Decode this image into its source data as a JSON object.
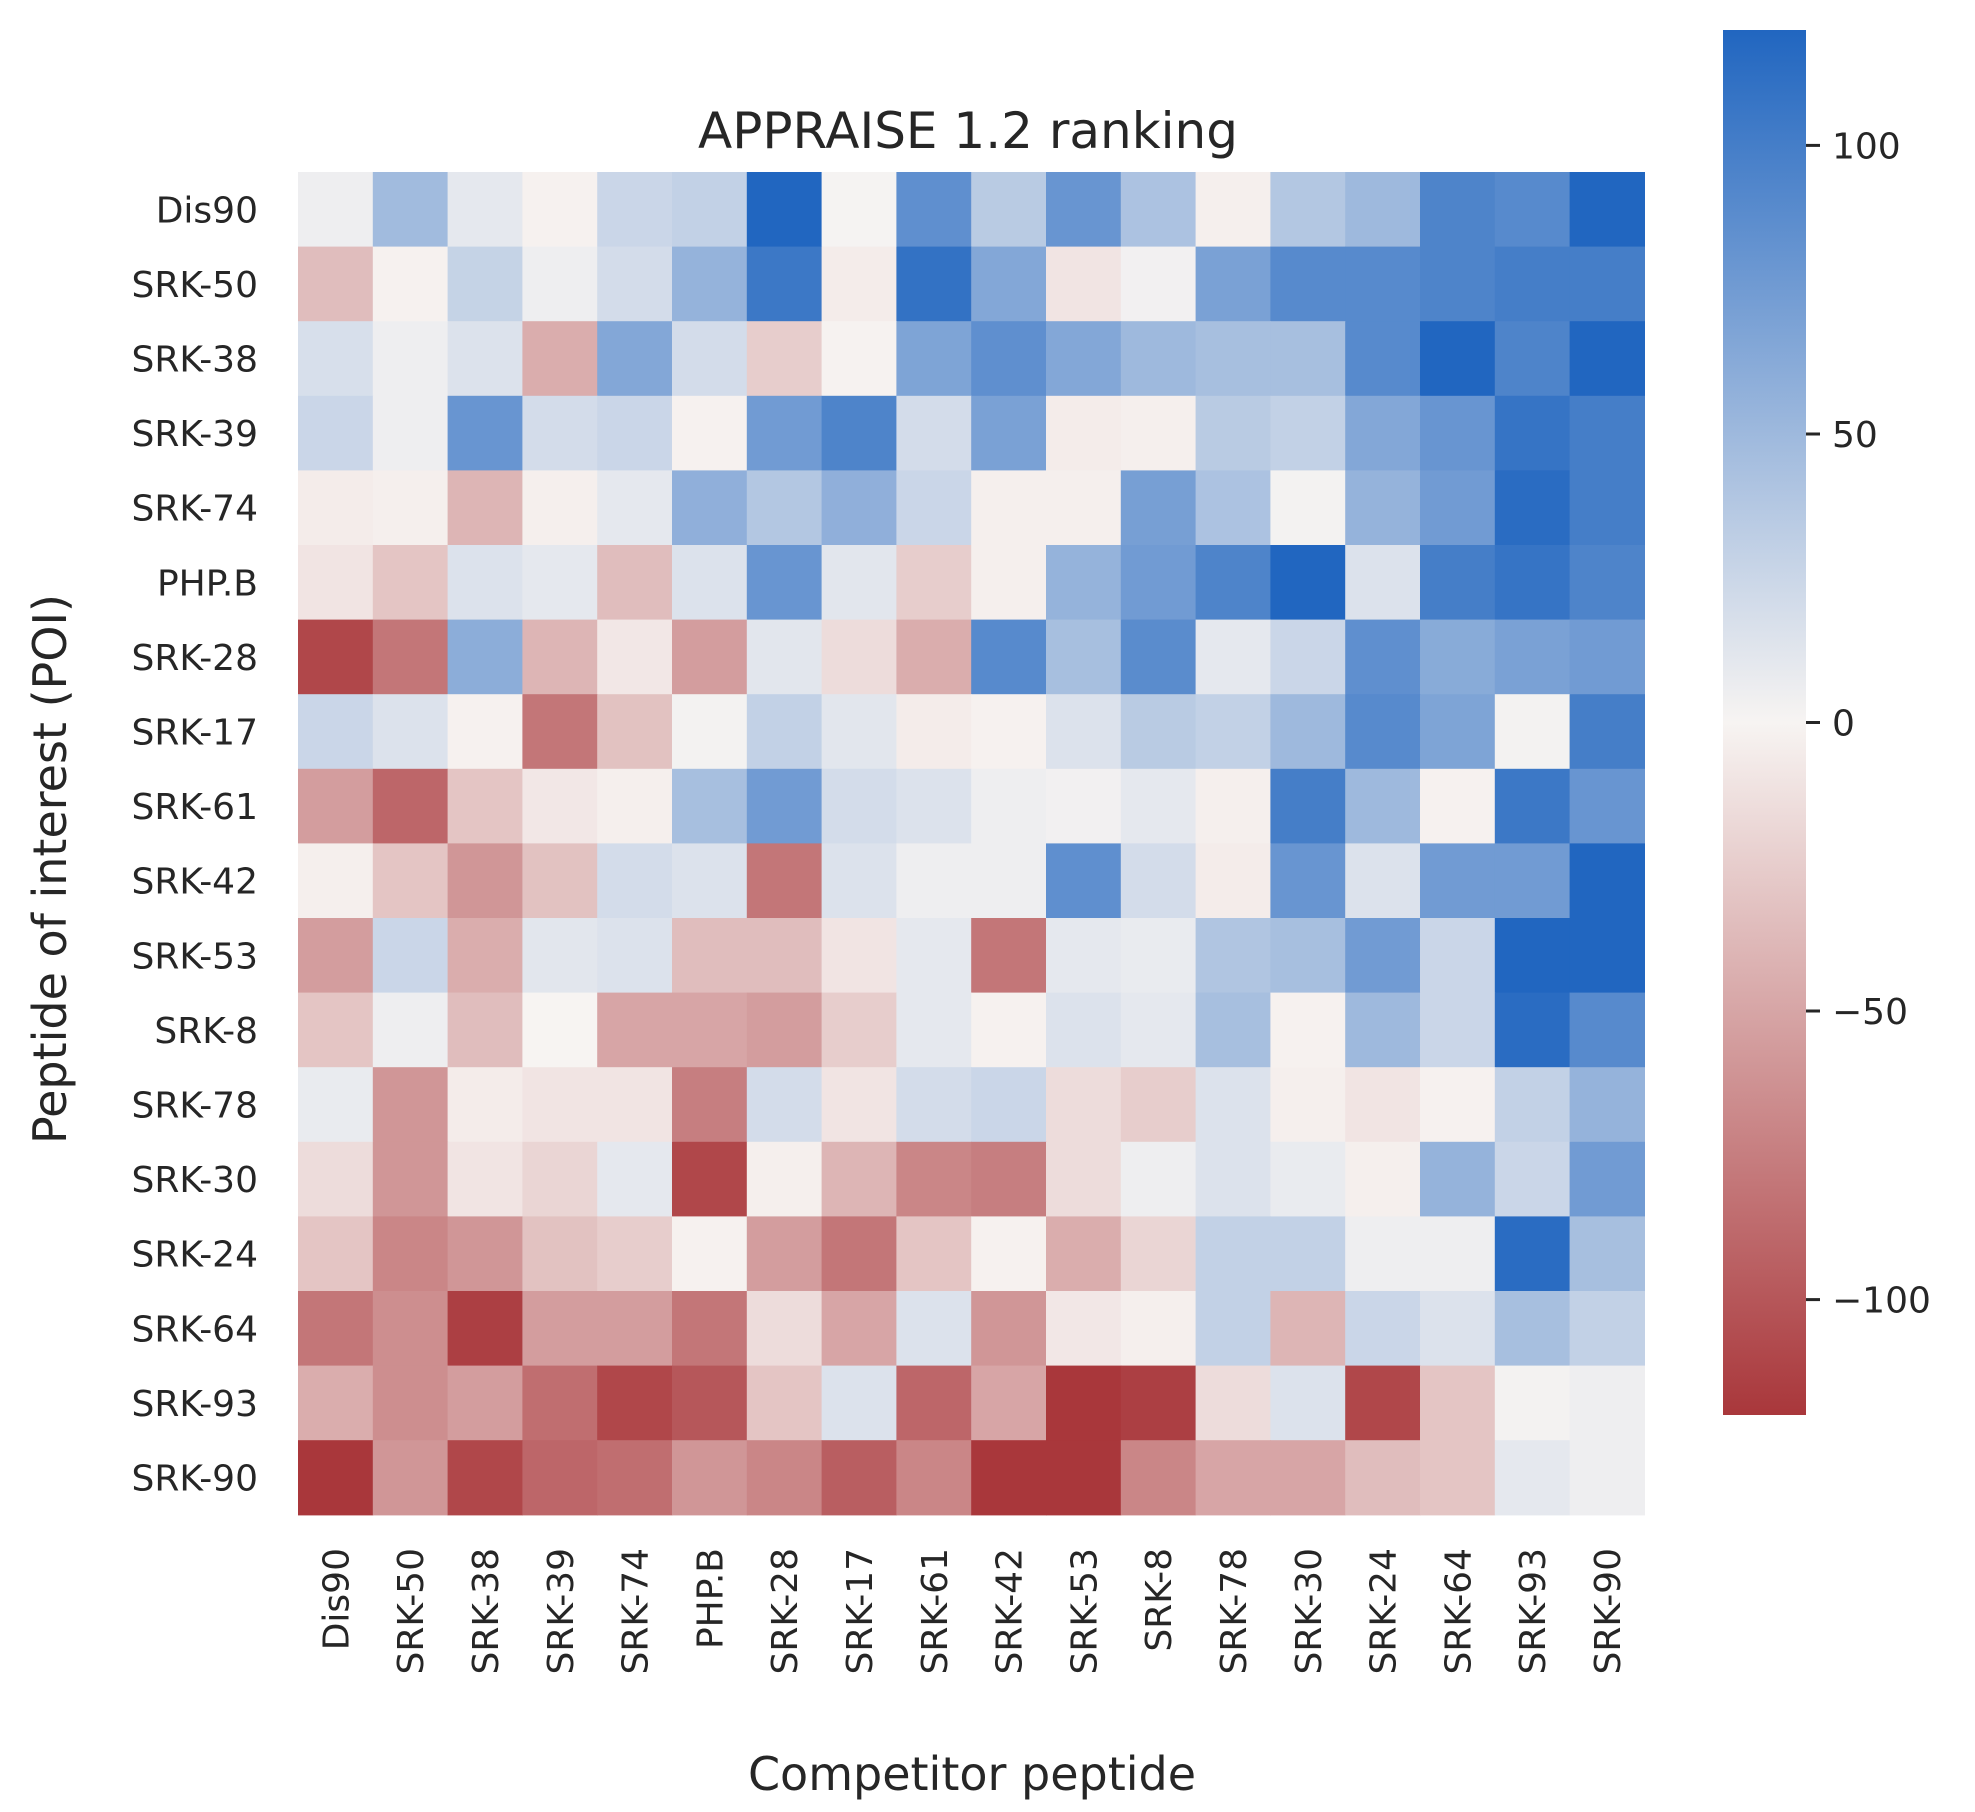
{
  "chart_data": {
    "type": "heatmap",
    "title": "APPRAISE 1.2 ranking",
    "xlabel": "Competitor peptide",
    "ylabel": "Peptide of interest (POI)",
    "x_categories": [
      "Dis90",
      "SRK-50",
      "SRK-38",
      "SRK-39",
      "SRK-74",
      "PHP.B",
      "SRK-28",
      "SRK-17",
      "SRK-61",
      "SRK-42",
      "SRK-53",
      "SRK-8",
      "SRK-78",
      "SRK-30",
      "SRK-24",
      "SRK-64",
      "SRK-93",
      "SRK-90"
    ],
    "y_categories": [
      "Dis90",
      "SRK-50",
      "SRK-38",
      "SRK-39",
      "SRK-74",
      "PHP.B",
      "SRK-28",
      "SRK-17",
      "SRK-61",
      "SRK-42",
      "SRK-53",
      "SRK-8",
      "SRK-78",
      "SRK-30",
      "SRK-24",
      "SRK-64",
      "SRK-93",
      "SRK-90"
    ],
    "values": [
      [
        5,
        48,
        10,
        -2,
        25,
        30,
        120,
        1,
        85,
        35,
        80,
        42,
        -3,
        38,
        50,
        95,
        90,
        120
      ],
      [
        -35,
        -2,
        28,
        5,
        20,
        55,
        105,
        -5,
        110,
        65,
        -10,
        3,
        70,
        90,
        90,
        95,
        100,
        100
      ],
      [
        18,
        5,
        15,
        -45,
        65,
        20,
        -25,
        -1,
        68,
        85,
        65,
        50,
        45,
        45,
        90,
        120,
        95,
        120
      ],
      [
        25,
        5,
        80,
        20,
        25,
        -2,
        75,
        95,
        20,
        70,
        -5,
        -3,
        35,
        30,
        65,
        80,
        108,
        100
      ],
      [
        -5,
        -3,
        -40,
        -3,
        10,
        58,
        38,
        58,
        25,
        -3,
        -3,
        72,
        42,
        2,
        55,
        75,
        115,
        100
      ],
      [
        -10,
        -30,
        15,
        10,
        -35,
        15,
        80,
        12,
        -25,
        -3,
        55,
        75,
        95,
        120,
        15,
        100,
        108,
        95
      ],
      [
        -110,
        -80,
        60,
        -40,
        -8,
        -55,
        12,
        -15,
        -45,
        90,
        45,
        88,
        10,
        25,
        85,
        62,
        70,
        75
      ],
      [
        25,
        15,
        -2,
        -80,
        -32,
        2,
        30,
        12,
        -5,
        -2,
        15,
        35,
        30,
        50,
        90,
        68,
        2,
        100
      ],
      [
        -55,
        -90,
        -30,
        -8,
        -3,
        45,
        75,
        20,
        15,
        5,
        3,
        10,
        -3,
        100,
        50,
        -2,
        105,
        80
      ],
      [
        -3,
        -30,
        -60,
        -32,
        20,
        15,
        -80,
        15,
        5,
        5,
        85,
        20,
        -5,
        80,
        15,
        75,
        75,
        120
      ],
      [
        -55,
        25,
        -45,
        12,
        15,
        -35,
        -35,
        -10,
        10,
        -80,
        10,
        8,
        40,
        45,
        75,
        25,
        120,
        120
      ],
      [
        -30,
        5,
        -35,
        0,
        -50,
        -50,
        -55,
        -25,
        10,
        -2,
        15,
        10,
        45,
        -2,
        50,
        25,
        115,
        90
      ],
      [
        8,
        -60,
        -5,
        -10,
        -10,
        -75,
        20,
        -10,
        20,
        25,
        -15,
        -25,
        15,
        -3,
        -10,
        -2,
        30,
        55
      ],
      [
        -15,
        -60,
        -10,
        -20,
        10,
        -110,
        -3,
        -40,
        -70,
        -75,
        -15,
        5,
        15,
        8,
        -3,
        55,
        25,
        75
      ],
      [
        -30,
        -70,
        -60,
        -32,
        -25,
        -2,
        -55,
        -80,
        -30,
        -2,
        -45,
        -20,
        30,
        30,
        5,
        5,
        115,
        45
      ],
      [
        -80,
        -65,
        -115,
        -55,
        -55,
        -80,
        -15,
        -50,
        15,
        -60,
        -8,
        -3,
        30,
        -40,
        25,
        15,
        45,
        30
      ],
      [
        -45,
        -65,
        -55,
        -85,
        -110,
        -100,
        -30,
        15,
        -90,
        -50,
        -120,
        -115,
        -15,
        15,
        -110,
        -30,
        2,
        5
      ],
      [
        -120,
        -60,
        -110,
        -90,
        -85,
        -60,
        -70,
        -95,
        -70,
        -120,
        -120,
        -70,
        -50,
        -50,
        -35,
        -30,
        10,
        5
      ]
    ],
    "colorbar": {
      "min": -120,
      "max": 120,
      "ticks": [
        100,
        50,
        0,
        -50,
        -100
      ],
      "tick_labels": [
        "100",
        "50",
        "0",
        "−50",
        "−100"
      ],
      "colormap": "diverging red-white-blue",
      "low_color": "#a9373b",
      "mid_color": "#f7f4f2",
      "high_color": "#2166c0"
    }
  }
}
